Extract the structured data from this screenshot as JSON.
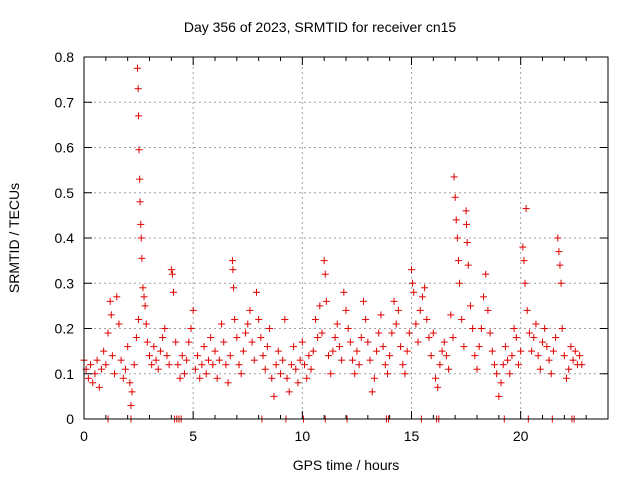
{
  "chart_data": {
    "type": "scatter",
    "title": "Day 356 of 2023, SRMTID for receiver cn15",
    "xlabel": "GPS time / hours",
    "ylabel": "SRMTID / TECUs",
    "xlim": [
      0,
      24
    ],
    "ylim": [
      0,
      0.8
    ],
    "xticks": [
      0,
      5,
      10,
      15,
      20
    ],
    "xtick_labels": [
      "0",
      "5",
      "10",
      "15",
      "20"
    ],
    "yticks": [
      0,
      0.1,
      0.2,
      0.3,
      0.4,
      0.5,
      0.6,
      0.7,
      0.8
    ],
    "ytick_labels": [
      "0",
      "0.1",
      "0.2",
      "0.3",
      "0.4",
      "0.5",
      "0.6",
      "0.7",
      "0.8"
    ],
    "grid": true,
    "marker": "+",
    "color": "#e00000",
    "series": [
      {
        "name": "SRMTID",
        "points": [
          [
            0.0,
            0.13
          ],
          [
            0.1,
            0.11
          ],
          [
            0.2,
            0.09
          ],
          [
            0.3,
            0.12
          ],
          [
            0.4,
            0.08
          ],
          [
            0.5,
            0.1
          ],
          [
            0.6,
            0.13
          ],
          [
            0.7,
            0.07
          ],
          [
            0.8,
            0.11
          ],
          [
            0.9,
            0.15
          ],
          [
            1.0,
            0.12
          ],
          [
            1.1,
            0.19
          ],
          [
            1.2,
            0.26
          ],
          [
            1.25,
            0.23
          ],
          [
            1.3,
            0.14
          ],
          [
            1.4,
            0.1
          ],
          [
            1.5,
            0.27
          ],
          [
            1.6,
            0.21
          ],
          [
            1.7,
            0.13
          ],
          [
            1.8,
            0.09
          ],
          [
            1.9,
            0.11
          ],
          [
            2.0,
            0.16
          ],
          [
            2.1,
            0.08
          ],
          [
            2.15,
            0.03
          ],
          [
            2.2,
            0.06
          ],
          [
            2.3,
            0.12
          ],
          [
            2.4,
            0.18
          ],
          [
            2.5,
            0.22
          ],
          [
            2.45,
            0.775
          ],
          [
            2.48,
            0.73
          ],
          [
            2.5,
            0.67
          ],
          [
            2.52,
            0.595
          ],
          [
            2.55,
            0.53
          ],
          [
            2.57,
            0.48
          ],
          [
            2.6,
            0.43
          ],
          [
            2.62,
            0.4
          ],
          [
            2.65,
            0.355
          ],
          [
            2.7,
            0.29
          ],
          [
            2.75,
            0.27
          ],
          [
            2.8,
            0.25
          ],
          [
            2.85,
            0.21
          ],
          [
            2.9,
            0.17
          ],
          [
            3.0,
            0.14
          ],
          [
            3.1,
            0.12
          ],
          [
            3.2,
            0.16
          ],
          [
            3.3,
            0.13
          ],
          [
            3.4,
            0.11
          ],
          [
            3.5,
            0.15
          ],
          [
            3.6,
            0.18
          ],
          [
            3.7,
            0.2
          ],
          [
            3.8,
            0.14
          ],
          [
            3.9,
            0.12
          ],
          [
            4.0,
            0.33
          ],
          [
            4.05,
            0.32
          ],
          [
            4.1,
            0.28
          ],
          [
            4.2,
            0.17
          ],
          [
            4.3,
            0.12
          ],
          [
            4.4,
            0.09
          ],
          [
            4.5,
            0.14
          ],
          [
            4.6,
            0.1
          ],
          [
            4.7,
            0.13
          ],
          [
            4.8,
            0.17
          ],
          [
            4.9,
            0.2
          ],
          [
            5.0,
            0.24
          ],
          [
            5.1,
            0.11
          ],
          [
            5.2,
            0.14
          ],
          [
            5.3,
            0.09
          ],
          [
            5.4,
            0.12
          ],
          [
            5.5,
            0.16
          ],
          [
            5.6,
            0.1
          ],
          [
            5.7,
            0.13
          ],
          [
            5.8,
            0.18
          ],
          [
            5.9,
            0.12
          ],
          [
            6.0,
            0.15
          ],
          [
            6.1,
            0.09
          ],
          [
            6.2,
            0.13
          ],
          [
            6.3,
            0.21
          ],
          [
            6.4,
            0.17
          ],
          [
            6.5,
            0.12
          ],
          [
            6.6,
            0.08
          ],
          [
            6.7,
            0.14
          ],
          [
            6.8,
            0.35
          ],
          [
            6.82,
            0.33
          ],
          [
            6.85,
            0.29
          ],
          [
            6.9,
            0.22
          ],
          [
            7.0,
            0.18
          ],
          [
            7.1,
            0.12
          ],
          [
            7.2,
            0.1
          ],
          [
            7.3,
            0.15
          ],
          [
            7.4,
            0.19
          ],
          [
            7.5,
            0.21
          ],
          [
            7.6,
            0.24
          ],
          [
            7.7,
            0.17
          ],
          [
            7.8,
            0.13
          ],
          [
            7.9,
            0.28
          ],
          [
            8.0,
            0.22
          ],
          [
            8.1,
            0.18
          ],
          [
            8.2,
            0.14
          ],
          [
            8.3,
            0.11
          ],
          [
            8.4,
            0.16
          ],
          [
            8.5,
            0.2
          ],
          [
            8.6,
            0.09
          ],
          [
            8.7,
            0.05
          ],
          [
            8.8,
            0.12
          ],
          [
            8.9,
            0.15
          ],
          [
            9.0,
            0.1
          ],
          [
            9.1,
            0.13
          ],
          [
            9.2,
            0.22
          ],
          [
            9.3,
            0.09
          ],
          [
            9.4,
            0.06
          ],
          [
            9.5,
            0.12
          ],
          [
            9.6,
            0.16
          ],
          [
            9.7,
            0.11
          ],
          [
            9.8,
            0.08
          ],
          [
            9.9,
            0.13
          ],
          [
            10.0,
            0.17
          ],
          [
            10.1,
            0.12
          ],
          [
            10.2,
            0.09
          ],
          [
            10.3,
            0.14
          ],
          [
            10.4,
            0.11
          ],
          [
            10.5,
            0.15
          ],
          [
            10.6,
            0.22
          ],
          [
            10.7,
            0.18
          ],
          [
            10.8,
            0.25
          ],
          [
            10.9,
            0.19
          ],
          [
            11.0,
            0.35
          ],
          [
            11.05,
            0.32
          ],
          [
            11.1,
            0.26
          ],
          [
            11.2,
            0.14
          ],
          [
            11.3,
            0.1
          ],
          [
            11.4,
            0.15
          ],
          [
            11.5,
            0.18
          ],
          [
            11.6,
            0.21
          ],
          [
            11.7,
            0.16
          ],
          [
            11.8,
            0.13
          ],
          [
            11.9,
            0.28
          ],
          [
            12.0,
            0.24
          ],
          [
            12.1,
            0.2
          ],
          [
            12.2,
            0.17
          ],
          [
            12.3,
            0.13
          ],
          [
            12.4,
            0.1
          ],
          [
            12.5,
            0.15
          ],
          [
            12.6,
            0.12
          ],
          [
            12.7,
            0.18
          ],
          [
            12.8,
            0.26
          ],
          [
            12.9,
            0.22
          ],
          [
            13.0,
            0.17
          ],
          [
            13.1,
            0.13
          ],
          [
            13.2,
            0.06
          ],
          [
            13.3,
            0.09
          ],
          [
            13.4,
            0.15
          ],
          [
            13.5,
            0.19
          ],
          [
            13.6,
            0.23
          ],
          [
            13.7,
            0.16
          ],
          [
            13.8,
            0.12
          ],
          [
            13.9,
            0.1
          ],
          [
            14.0,
            0.14
          ],
          [
            14.1,
            0.19
          ],
          [
            14.2,
            0.26
          ],
          [
            14.3,
            0.21
          ],
          [
            14.4,
            0.24
          ],
          [
            14.5,
            0.16
          ],
          [
            14.6,
            0.12
          ],
          [
            14.7,
            0.1
          ],
          [
            14.8,
            0.15
          ],
          [
            14.9,
            0.19
          ],
          [
            15.0,
            0.33
          ],
          [
            15.05,
            0.3
          ],
          [
            15.1,
            0.28
          ],
          [
            15.2,
            0.21
          ],
          [
            15.3,
            0.17
          ],
          [
            15.4,
            0.24
          ],
          [
            15.5,
            0.27
          ],
          [
            15.6,
            0.29
          ],
          [
            15.7,
            0.22
          ],
          [
            15.8,
            0.18
          ],
          [
            15.9,
            0.14
          ],
          [
            16.0,
            0.19
          ],
          [
            16.1,
            0.09
          ],
          [
            16.2,
            0.07
          ],
          [
            16.3,
            0.12
          ],
          [
            16.4,
            0.15
          ],
          [
            16.5,
            0.17
          ],
          [
            16.6,
            0.14
          ],
          [
            16.7,
            0.11
          ],
          [
            16.8,
            0.23
          ],
          [
            16.9,
            0.18
          ],
          [
            16.95,
            0.535
          ],
          [
            17.0,
            0.49
          ],
          [
            17.05,
            0.44
          ],
          [
            17.1,
            0.4
          ],
          [
            17.15,
            0.35
          ],
          [
            17.2,
            0.3
          ],
          [
            17.3,
            0.22
          ],
          [
            17.4,
            0.16
          ],
          [
            17.5,
            0.46
          ],
          [
            17.52,
            0.43
          ],
          [
            17.55,
            0.39
          ],
          [
            17.6,
            0.34
          ],
          [
            17.7,
            0.25
          ],
          [
            17.8,
            0.2
          ],
          [
            17.9,
            0.14
          ],
          [
            18.0,
            0.11
          ],
          [
            18.1,
            0.16
          ],
          [
            18.2,
            0.2
          ],
          [
            18.3,
            0.27
          ],
          [
            18.4,
            0.32
          ],
          [
            18.5,
            0.24
          ],
          [
            18.6,
            0.19
          ],
          [
            18.7,
            0.15
          ],
          [
            18.8,
            0.12
          ],
          [
            18.9,
            0.1
          ],
          [
            19.0,
            0.05
          ],
          [
            19.1,
            0.08
          ],
          [
            19.2,
            0.12
          ],
          [
            19.3,
            0.16
          ],
          [
            19.4,
            0.13
          ],
          [
            19.5,
            0.1
          ],
          [
            19.6,
            0.14
          ],
          [
            19.7,
            0.2
          ],
          [
            19.8,
            0.18
          ],
          [
            19.9,
            0.12
          ],
          [
            20.0,
            0.15
          ],
          [
            20.1,
            0.38
          ],
          [
            20.15,
            0.35
          ],
          [
            20.2,
            0.3
          ],
          [
            20.25,
            0.465
          ],
          [
            20.3,
            0.24
          ],
          [
            20.4,
            0.19
          ],
          [
            20.5,
            0.15
          ],
          [
            20.6,
            0.18
          ],
          [
            20.7,
            0.21
          ],
          [
            20.8,
            0.14
          ],
          [
            20.9,
            0.11
          ],
          [
            21.0,
            0.17
          ],
          [
            21.1,
            0.2
          ],
          [
            21.2,
            0.16
          ],
          [
            21.3,
            0.13
          ],
          [
            21.4,
            0.1
          ],
          [
            21.5,
            0.15
          ],
          [
            21.6,
            0.18
          ],
          [
            21.7,
            0.4
          ],
          [
            21.75,
            0.37
          ],
          [
            21.8,
            0.34
          ],
          [
            21.85,
            0.3
          ],
          [
            21.9,
            0.2
          ],
          [
            22.0,
            0.14
          ],
          [
            22.1,
            0.09
          ],
          [
            22.2,
            0.11
          ],
          [
            22.3,
            0.16
          ],
          [
            22.4,
            0.13
          ],
          [
            22.5,
            0.15
          ],
          [
            22.6,
            0.12
          ],
          [
            22.7,
            0.14
          ],
          [
            22.8,
            0.12
          ],
          [
            1.1,
            0.0
          ],
          [
            2.15,
            0.0
          ],
          [
            4.15,
            0.0
          ],
          [
            4.25,
            0.0
          ],
          [
            4.35,
            0.0
          ],
          [
            4.45,
            0.0
          ],
          [
            8.15,
            0.0
          ],
          [
            9.25,
            0.0
          ],
          [
            10.05,
            0.0
          ],
          [
            11.05,
            0.0
          ],
          [
            12.05,
            0.0
          ],
          [
            13.85,
            0.0
          ],
          [
            13.95,
            0.0
          ],
          [
            15.45,
            0.0
          ],
          [
            16.15,
            0.0
          ],
          [
            16.25,
            0.0
          ],
          [
            19.25,
            0.0
          ],
          [
            20.35,
            0.0
          ],
          [
            21.45,
            0.0
          ],
          [
            22.35,
            0.0
          ],
          [
            22.45,
            0.0
          ]
        ]
      }
    ]
  }
}
